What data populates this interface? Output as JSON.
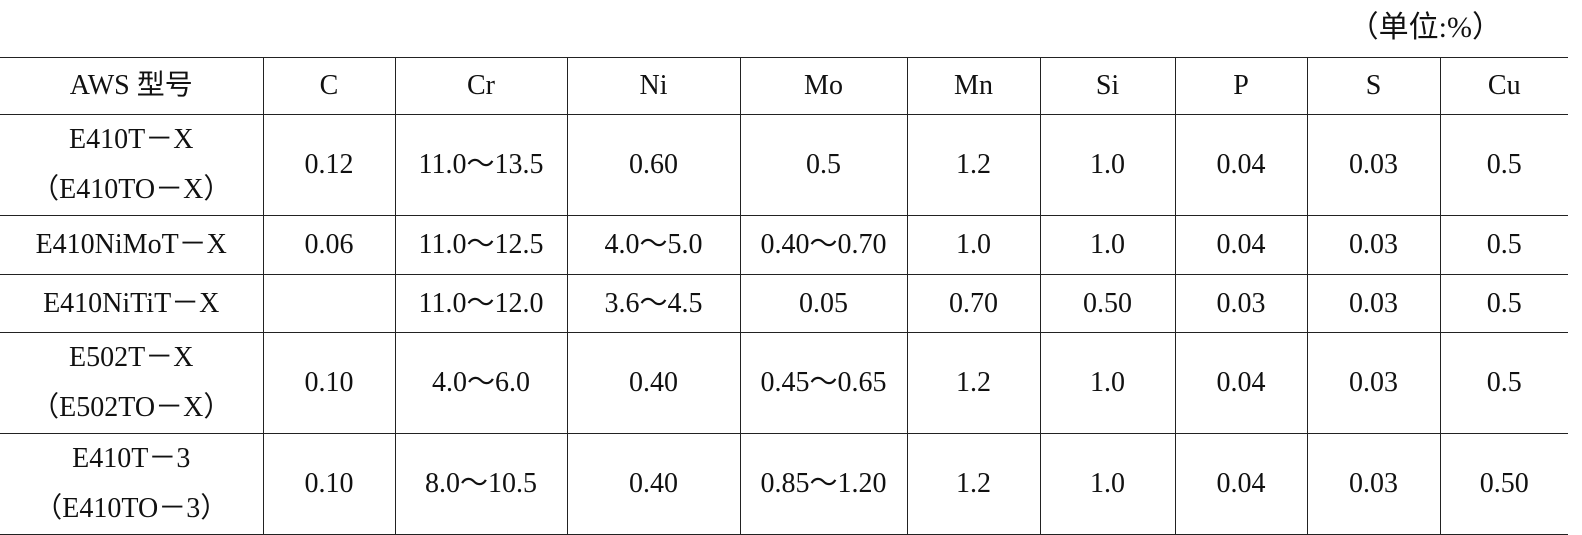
{
  "unit_note": "（单位:%）",
  "table": {
    "header": [
      "AWS 型号",
      "C",
      "Cr",
      "Ni",
      "Mo",
      "Mn",
      "Si",
      "P",
      "S",
      "Cu"
    ],
    "rows": [
      [
        [
          "E410T－X",
          "（E410TO－X）"
        ],
        "0.12",
        "11.0～13.5",
        "0.60",
        "0.5",
        "1.2",
        "1.0",
        "0.04",
        "0.03",
        "0.5"
      ],
      [
        [
          "E410NiMoT－X"
        ],
        "0.06",
        "11.0～12.5",
        "4.0～5.0",
        "0.40～0.70",
        "1.0",
        "1.0",
        "0.04",
        "0.03",
        "0.5"
      ],
      [
        [
          "E410NiTiT－X"
        ],
        null,
        "11.0～12.0",
        "3.6～4.5",
        "0.05",
        "0.70",
        "0.50",
        "0.03",
        "0.03",
        "0.5"
      ],
      [
        [
          "E502T－X",
          "（E502TO－X）"
        ],
        "0.10",
        "4.0～6.0",
        "0.40",
        "0.45～0.65",
        "1.2",
        "1.0",
        "0.04",
        "0.03",
        "0.5"
      ],
      [
        [
          "E410T－3",
          "（E410TO－3）"
        ],
        "0.10",
        "8.0～10.5",
        "0.40",
        "0.85～1.20",
        "1.2",
        "1.0",
        "0.04",
        "0.03",
        "0.50"
      ]
    ]
  }
}
